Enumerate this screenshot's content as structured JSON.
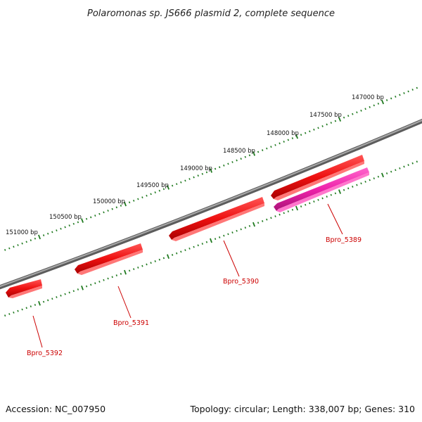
{
  "title": "Polaromonas sp. JS666 plasmid 2, complete sequence",
  "footer": {
    "accession": "Accession: NC_007950",
    "summary": "Topology: circular; Length: 338,007 bp; Genes: 310"
  },
  "colors": {
    "backbone": "#808080",
    "tick": "#1f7a1f",
    "gene_red": "#ee1111",
    "gene_magenta": "#ee22aa",
    "label": "#cc0000"
  },
  "bp_labels": [
    "151000 bp",
    "150500 bp",
    "150000 bp",
    "149500 bp",
    "149000 bp",
    "148500 bp",
    "148000 bp",
    "147500 bp",
    "147000 bp"
  ],
  "genes": [
    {
      "label": "Bpro_5392",
      "color": "red"
    },
    {
      "label": "Bpro_5391",
      "color": "red"
    },
    {
      "label": "Bpro_5390",
      "color": "red"
    },
    {
      "label": ""
    },
    {
      "label": "Bpro_5389",
      "color": "magenta"
    }
  ]
}
